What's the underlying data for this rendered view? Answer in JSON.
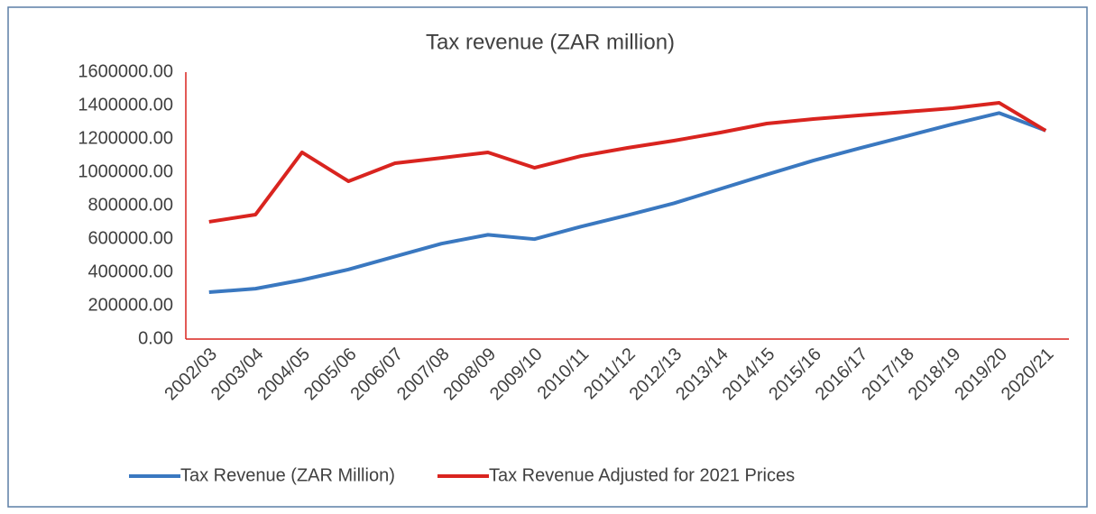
{
  "chart_data": {
    "type": "line",
    "title": "Tax revenue (ZAR million)",
    "categories": [
      "2002/03",
      "2003/04",
      "2004/05",
      "2005/06",
      "2006/07",
      "2007/08",
      "2008/09",
      "2009/10",
      "2010/11",
      "2011/12",
      "2012/13",
      "2013/14",
      "2014/15",
      "2015/16",
      "2016/17",
      "2017/18",
      "2018/19",
      "2019/20",
      "2020/21"
    ],
    "series": [
      {
        "name": "Tax Revenue (ZAR Million)",
        "color": "#3a78c0",
        "values": [
          281000,
          302000,
          354000,
          417000,
          495000,
          572000,
          625000,
          599000,
          674000,
          742000,
          814000,
          900000,
          986000,
          1070000,
          1144000,
          1216000,
          1288000,
          1355000,
          1250000
        ]
      },
      {
        "name": "Tax Revenue Adjusted for 2021 Prices",
        "color": "#d9241f",
        "values": [
          703000,
          746000,
          1119000,
          946000,
          1054000,
          1086000,
          1119000,
          1027000,
          1097000,
          1146000,
          1189000,
          1238000,
          1292000,
          1319000,
          1341000,
          1362000,
          1384000,
          1416000,
          1249000
        ]
      }
    ],
    "ylim": [
      0,
      1600000
    ],
    "yticks": [
      {
        "value": 0,
        "label": "0.00"
      },
      {
        "value": 200000,
        "label": "200000.00"
      },
      {
        "value": 400000,
        "label": "400000.00"
      },
      {
        "value": 600000,
        "label": "600000.00"
      },
      {
        "value": 800000,
        "label": "800000.00"
      },
      {
        "value": 1000000,
        "label": "1000000.00"
      },
      {
        "value": 1200000,
        "label": "1200000.00"
      },
      {
        "value": 1400000,
        "label": "1400000.00"
      },
      {
        "value": 1600000,
        "label": "1600000.00"
      }
    ],
    "grid": false,
    "legend": "bottom"
  }
}
